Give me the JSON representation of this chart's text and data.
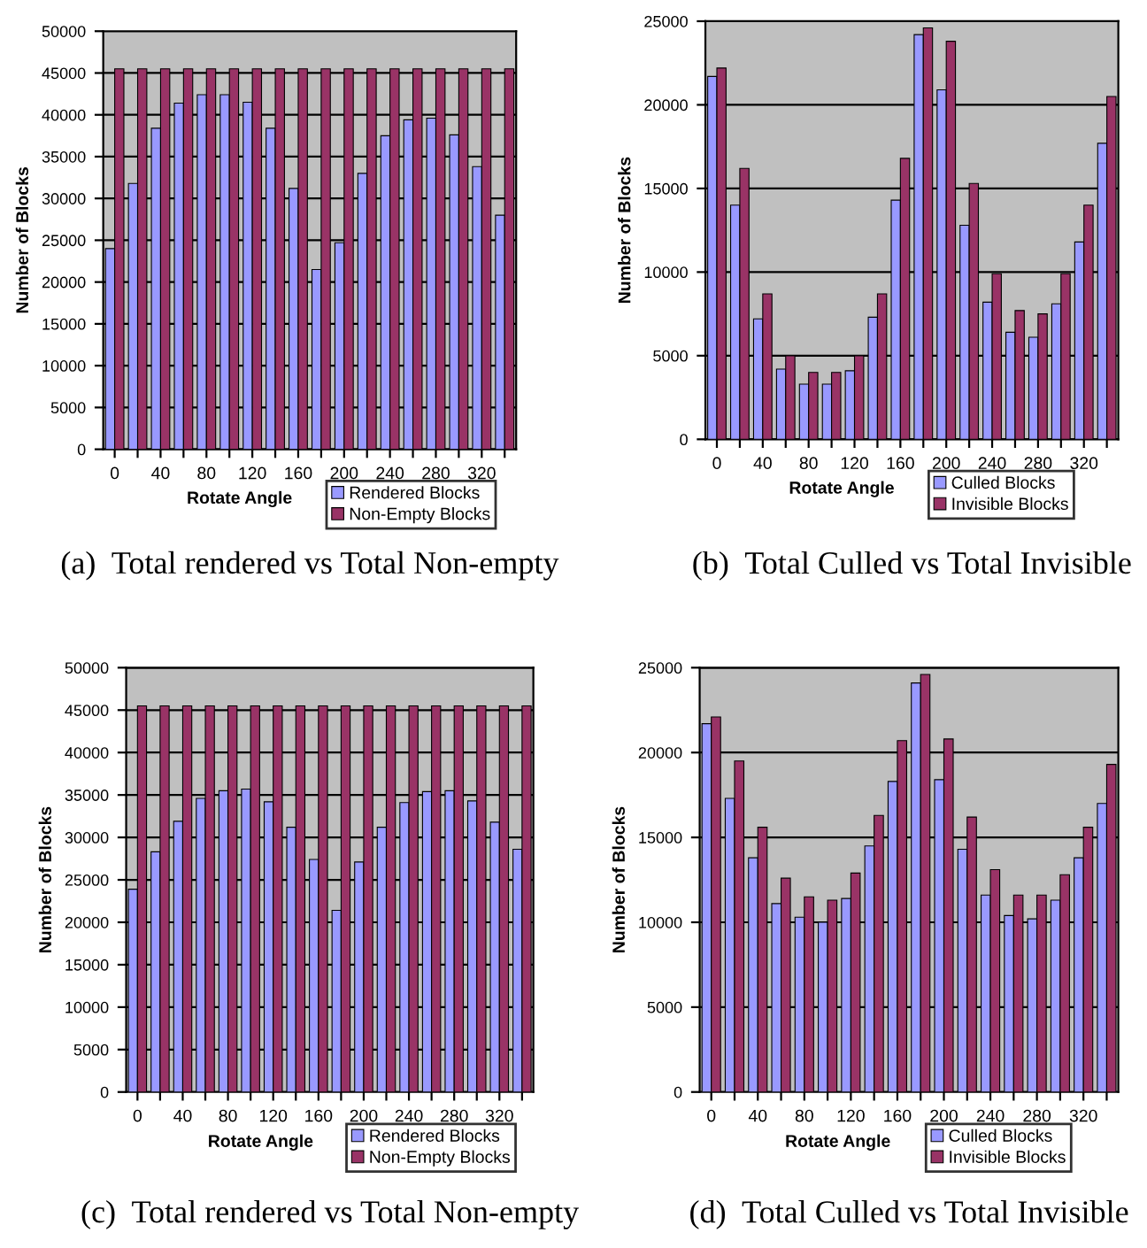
{
  "chart_data": [
    {
      "type": "bar",
      "title": "(a)  Total rendered vs Total Non-empty",
      "xlabel": "Rotate Angle",
      "ylabel": "Number of Blocks",
      "categories": [
        "0",
        null,
        "40",
        null,
        "80",
        null,
        "120",
        null,
        "160",
        null,
        "200",
        null,
        "240",
        null,
        "280",
        null,
        "320",
        null
      ],
      "series": [
        {
          "name": "Rendered Blocks",
          "color": "#9999ff",
          "values": [
            24000,
            31800,
            38400,
            41400,
            42400,
            42400,
            41500,
            38400,
            31200,
            21500,
            24700,
            33000,
            37500,
            39400,
            39600,
            37600,
            33800,
            28000
          ]
        },
        {
          "name": "Non-Empty Blocks",
          "color": "#993366",
          "values": [
            45500,
            45500,
            45500,
            45500,
            45500,
            45500,
            45500,
            45500,
            45500,
            45500,
            45500,
            45500,
            45500,
            45500,
            45500,
            45500,
            45500,
            45500
          ]
        }
      ],
      "ylim": [
        0,
        50000
      ],
      "yticks": [
        0,
        5000,
        10000,
        15000,
        20000,
        25000,
        30000,
        35000,
        40000,
        45000,
        50000
      ],
      "grid": "y",
      "legend": "bottom right"
    },
    {
      "type": "bar",
      "title": "(b)  Total Culled vs Total Invisible",
      "xlabel": "Rotate Angle",
      "ylabel": "Number of Blocks",
      "categories": [
        "0",
        null,
        "40",
        null,
        "80",
        null,
        "120",
        null,
        "160",
        null,
        "200",
        null,
        "240",
        null,
        "280",
        null,
        "320",
        null
      ],
      "series": [
        {
          "name": "Culled Blocks",
          "color": "#9999ff",
          "values": [
            21700,
            14000,
            7200,
            4200,
            3300,
            3300,
            4100,
            7300,
            14300,
            24200,
            20900,
            12800,
            8200,
            6400,
            6100,
            8100,
            11800,
            17700
          ]
        },
        {
          "name": "Invisible Blocks",
          "color": "#993366",
          "values": [
            22200,
            16200,
            8700,
            5000,
            4000,
            4000,
            5000,
            8700,
            16800,
            24600,
            23800,
            15300,
            9900,
            7700,
            7500,
            9900,
            14000,
            20500
          ]
        }
      ],
      "ylim": [
        0,
        25000
      ],
      "yticks": [
        0,
        5000,
        10000,
        15000,
        20000,
        25000
      ],
      "grid": "y",
      "legend": "bottom right"
    },
    {
      "type": "bar",
      "title": "(c)  Total rendered vs Total Non-empty",
      "xlabel": "Rotate Angle",
      "ylabel": "Number of Blocks",
      "categories": [
        "0",
        null,
        "40",
        null,
        "80",
        null,
        "120",
        null,
        "160",
        null,
        "200",
        null,
        "240",
        null,
        "280",
        null,
        "320",
        null
      ],
      "series": [
        {
          "name": "Rendered Blocks",
          "color": "#9999ff",
          "values": [
            23900,
            28300,
            31900,
            34600,
            35500,
            35700,
            34200,
            31200,
            27400,
            21400,
            27100,
            31200,
            34100,
            35400,
            35500,
            34300,
            31800,
            28600
          ]
        },
        {
          "name": "Non-Empty Blocks",
          "color": "#993366",
          "values": [
            45500,
            45500,
            45500,
            45500,
            45500,
            45500,
            45500,
            45500,
            45500,
            45500,
            45500,
            45500,
            45500,
            45500,
            45500,
            45500,
            45500,
            45500
          ]
        }
      ],
      "ylim": [
        0,
        50000
      ],
      "yticks": [
        0,
        5000,
        10000,
        15000,
        20000,
        25000,
        30000,
        35000,
        40000,
        45000,
        50000
      ],
      "grid": "y",
      "legend": "bottom right"
    },
    {
      "type": "bar",
      "title": "(d)  Total Culled vs Total Invisible",
      "xlabel": "Rotate Angle",
      "ylabel": "Number of Blocks",
      "categories": [
        "0",
        null,
        "40",
        null,
        "80",
        null,
        "120",
        null,
        "160",
        null,
        "200",
        null,
        "240",
        null,
        "280",
        null,
        "320",
        null
      ],
      "series": [
        {
          "name": "Culled Blocks",
          "color": "#9999ff",
          "values": [
            21700,
            17300,
            13800,
            11100,
            10300,
            10000,
            11400,
            14500,
            18300,
            24100,
            18400,
            14300,
            11600,
            10400,
            10200,
            11300,
            13800,
            17000
          ]
        },
        {
          "name": "Invisible Blocks",
          "color": "#993366",
          "values": [
            22100,
            19500,
            15600,
            12600,
            11500,
            11300,
            12900,
            16300,
            20700,
            24600,
            20800,
            16200,
            13100,
            11600,
            11600,
            12800,
            15600,
            19300
          ]
        }
      ],
      "ylim": [
        0,
        25000
      ],
      "yticks": [
        0,
        5000,
        10000,
        15000,
        20000,
        25000
      ],
      "grid": "y",
      "legend": "bottom right"
    }
  ]
}
